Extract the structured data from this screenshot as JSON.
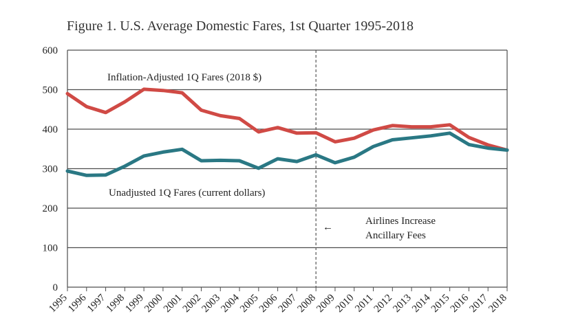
{
  "chart_data": {
    "type": "line",
    "title": "Figure 1. U.S. Average Domestic Fares, 1st Quarter 1995-2018",
    "x": [
      "1995",
      "1996",
      "1997",
      "1998",
      "1999",
      "2000",
      "2001",
      "2002",
      "2003",
      "2004",
      "2005",
      "2006",
      "2007",
      "2008",
      "2009",
      "2010",
      "2011",
      "2012",
      "2013",
      "2014",
      "2015",
      "2016",
      "2017",
      "2018"
    ],
    "ylim": [
      0,
      600
    ],
    "yticks": [
      "0",
      "100",
      "200",
      "300",
      "400",
      "500",
      "600"
    ],
    "grid": true,
    "series": [
      {
        "name": "Inflation-Adjusted 1Q Fares (2018 $)",
        "color": "#d04a45",
        "values": [
          490,
          457,
          442,
          469,
          501,
          498,
          492,
          448,
          434,
          427,
          393,
          404,
          390,
          391,
          368,
          377,
          398,
          409,
          406,
          406,
          411,
          379,
          360,
          347
        ]
      },
      {
        "name": "Unadjusted 1Q Fares (current dollars)",
        "color": "#2a7884",
        "values": [
          294,
          283,
          284,
          306,
          332,
          342,
          349,
          320,
          321,
          320,
          301,
          325,
          318,
          335,
          315,
          329,
          356,
          373,
          378,
          383,
          390,
          361,
          352,
          347
        ]
      }
    ],
    "vline": {
      "x": "2008"
    },
    "annotation": {
      "line1": "Airlines Increase",
      "line2": "Ancillary Fees",
      "arrow": "←"
    }
  }
}
